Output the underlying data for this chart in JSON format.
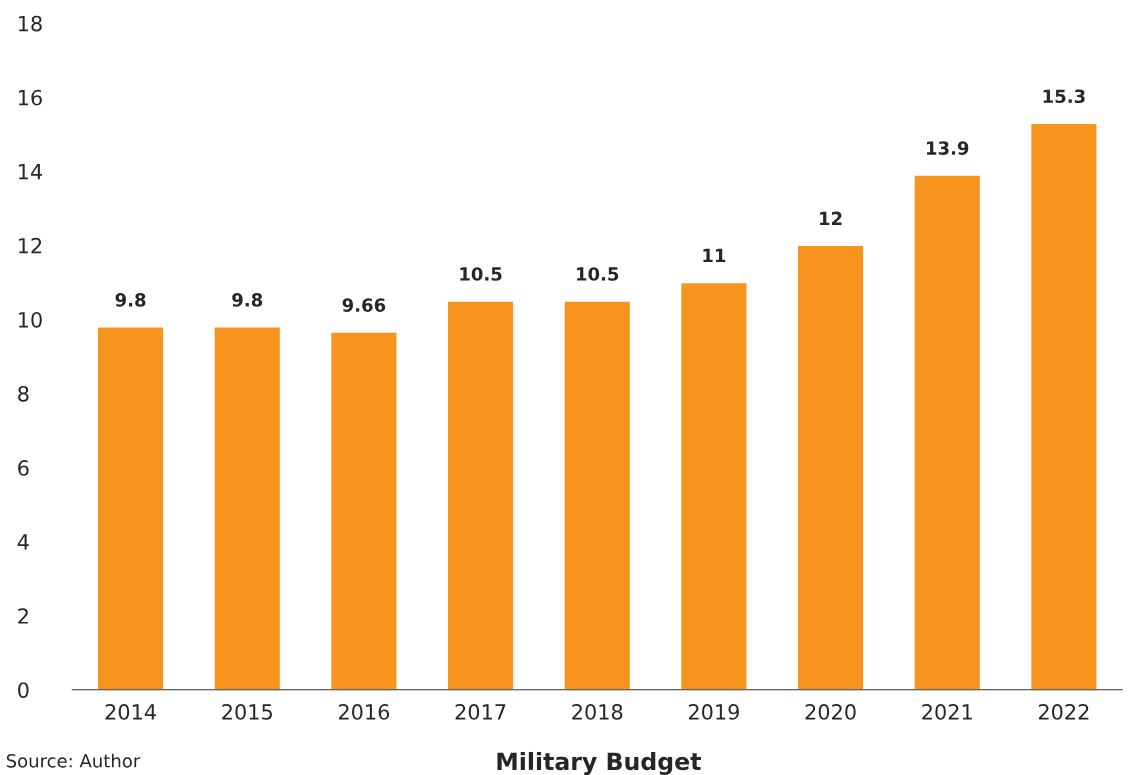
{
  "chart_data": {
    "type": "bar",
    "title": "Military Budget",
    "categories": [
      "2014",
      "2015",
      "2016",
      "2017",
      "2018",
      "2019",
      "2020",
      "2021",
      "2022"
    ],
    "values": [
      9.8,
      9.8,
      9.66,
      10.5,
      10.5,
      11,
      12,
      13.9,
      15.3
    ],
    "color": "#f7941d",
    "ylim": [
      0,
      18
    ],
    "yticks": [
      0,
      2,
      4,
      6,
      8,
      10,
      12,
      14,
      16,
      18
    ],
    "data_labels": true,
    "grid": false,
    "annotations": [
      "Source: Author"
    ]
  }
}
